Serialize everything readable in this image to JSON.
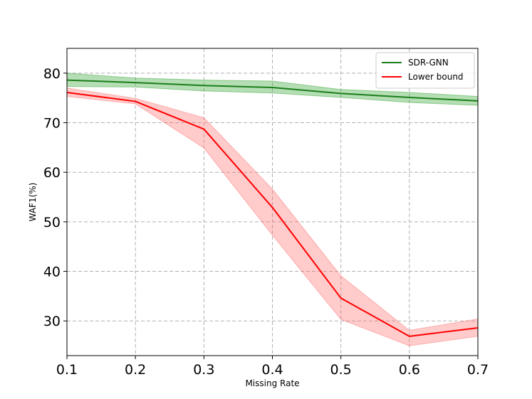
{
  "chart_data": {
    "type": "line",
    "title": "",
    "xlabel": "Missing Rate",
    "ylabel": "WAF1(%)",
    "xlim": [
      0.1,
      0.7
    ],
    "ylim": [
      23,
      85
    ],
    "x_ticks": [
      0.1,
      0.2,
      0.3,
      0.4,
      0.5,
      0.6,
      0.7
    ],
    "x_tick_labels": [
      "0.1",
      "0.2",
      "0.3",
      "0.4",
      "0.5",
      "0.6",
      "0.7"
    ],
    "y_ticks": [
      30,
      40,
      50,
      60,
      70,
      80
    ],
    "y_tick_labels": [
      "30",
      "40",
      "50",
      "60",
      "70",
      "80"
    ],
    "grid": true,
    "legend_position": "top-right",
    "x": [
      0.1,
      0.2,
      0.3,
      0.4,
      0.5,
      0.6,
      0.7
    ],
    "series": [
      {
        "name": "SDR-GNN",
        "color": "#1a7f1a",
        "band_color": "#2ca02c",
        "values": [
          78.6,
          78.1,
          77.5,
          77.1,
          75.9,
          75.1,
          74.4
        ],
        "lower": [
          77.3,
          77.2,
          76.4,
          76.0,
          75.1,
          74.1,
          73.5
        ],
        "upper": [
          80.0,
          79.0,
          78.6,
          78.4,
          76.7,
          76.1,
          75.3
        ]
      },
      {
        "name": "Lower bound",
        "color": "#ff0000",
        "band_color": "#ff6b6b",
        "values": [
          76.1,
          74.3,
          68.7,
          52.9,
          34.6,
          26.9,
          28.6
        ],
        "lower": [
          75.3,
          73.8,
          64.9,
          47.3,
          30.3,
          25.0,
          26.9
        ],
        "upper": [
          77.0,
          74.9,
          71.0,
          56.6,
          39.1,
          28.1,
          30.4
        ]
      }
    ]
  }
}
